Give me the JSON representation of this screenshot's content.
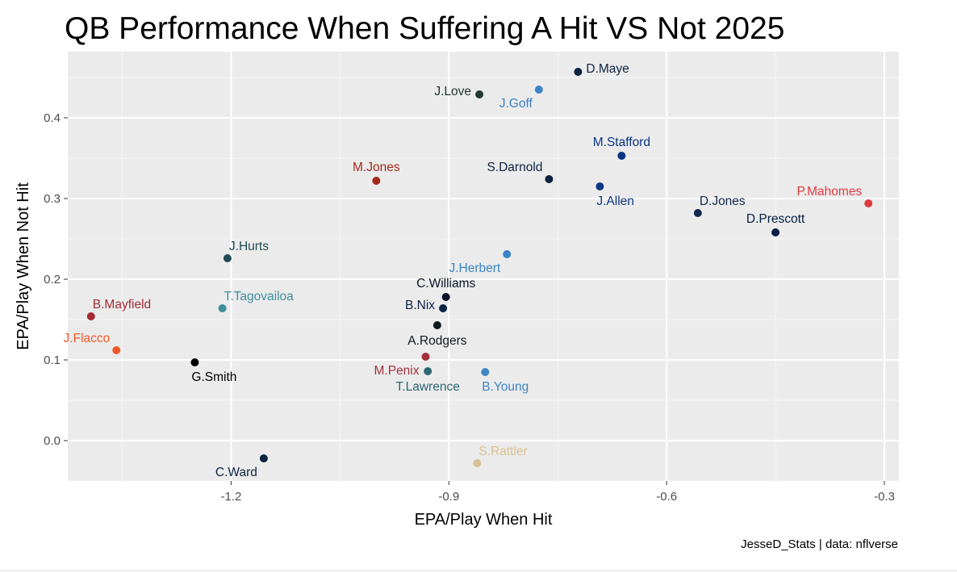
{
  "chart_data": {
    "type": "scatter",
    "title": "QB Performance When Suffering A Hit VS Not 2025",
    "xlabel": "EPA/Play When Hit",
    "ylabel": "EPA/Play When Not Hit",
    "caption": "JesseD_Stats | data: nflverse",
    "xlim": [
      -1.425,
      -0.28
    ],
    "ylim": [
      -0.05,
      0.482
    ],
    "x_ticks": [
      -1.2,
      -0.9,
      -0.6,
      -0.3
    ],
    "x_tick_labels": [
      "-1.2",
      "-0.9",
      "-0.6",
      "-0.3"
    ],
    "y_ticks": [
      0.0,
      0.1,
      0.2,
      0.3,
      0.4
    ],
    "y_tick_labels": [
      "0.0",
      "0.1",
      "0.2",
      "0.3",
      "0.4"
    ],
    "grid": true,
    "legend": "none",
    "points": [
      {
        "label": "D.Maye",
        "x": -0.722,
        "y": 0.457,
        "color": "#0b2341",
        "label_pos": "right"
      },
      {
        "label": "J.Love",
        "x": -0.858,
        "y": 0.429,
        "color": "#203731",
        "label_pos": "left"
      },
      {
        "label": "J.Goff",
        "x": -0.776,
        "y": 0.435,
        "color": "#3a84c8",
        "label_pos": "below-left"
      },
      {
        "label": "M.Stafford",
        "x": -0.662,
        "y": 0.353,
        "color": "#0a3584",
        "label_pos": "above"
      },
      {
        "label": "S.Darnold",
        "x": -0.762,
        "y": 0.324,
        "color": "#0e2341",
        "label_pos": "above-left"
      },
      {
        "label": "J.Allen",
        "x": -0.692,
        "y": 0.315,
        "color": "#0d3785",
        "label_pos": "below-right"
      },
      {
        "label": "M.Jones",
        "x": -1.0,
        "y": 0.322,
        "color": "#a4281c",
        "label_pos": "above"
      },
      {
        "label": "D.Jones",
        "x": -0.557,
        "y": 0.282,
        "color": "#13294b",
        "label_pos": "above-right"
      },
      {
        "label": "D.Prescott",
        "x": -0.45,
        "y": 0.258,
        "color": "#041e42",
        "label_pos": "above"
      },
      {
        "label": "P.Mahomes",
        "x": -0.322,
        "y": 0.294,
        "color": "#e03a3e",
        "label_pos": "above-left"
      },
      {
        "label": "J.Hurts",
        "x": -1.205,
        "y": 0.226,
        "color": "#214b52",
        "label_pos": "above-right"
      },
      {
        "label": "J.Herbert",
        "x": -0.82,
        "y": 0.231,
        "color": "#3a84c8",
        "label_pos": "below-left"
      },
      {
        "label": "C.Williams",
        "x": -0.904,
        "y": 0.178,
        "color": "#0b162a",
        "label_pos": "above"
      },
      {
        "label": "B.Nix",
        "x": -0.908,
        "y": 0.164,
        "color": "#0a2343",
        "label_pos": "left"
      },
      {
        "label": "A.Rodgers",
        "x": -0.916,
        "y": 0.143,
        "color": "#101820",
        "label_pos": "below"
      },
      {
        "label": "M.Penix",
        "x": -0.932,
        "y": 0.104,
        "color": "#a4303c",
        "label_pos": "below-left"
      },
      {
        "label": "T.Lawrence",
        "x": -0.929,
        "y": 0.086,
        "color": "#2b6672",
        "label_pos": "below"
      },
      {
        "label": "B.Young",
        "x": -0.85,
        "y": 0.085,
        "color": "#3f85c6",
        "label_pos": "below-right"
      },
      {
        "label": "T.Tagovailoa",
        "x": -1.212,
        "y": 0.164,
        "color": "#3e8e9c",
        "label_pos": "above-right"
      },
      {
        "label": "B.Mayfield",
        "x": -1.393,
        "y": 0.154,
        "color": "#a32c35",
        "label_pos": "above-right"
      },
      {
        "label": "J.Flacco",
        "x": -1.358,
        "y": 0.112,
        "color": "#ef5a2b",
        "label_pos": "above-left"
      },
      {
        "label": "G.Smith",
        "x": -1.25,
        "y": 0.097,
        "color": "#000000",
        "label_pos": "below-right"
      },
      {
        "label": "C.Ward",
        "x": -1.155,
        "y": -0.022,
        "color": "#0c2340",
        "label_pos": "below-left"
      },
      {
        "label": "S.Rattler",
        "x": -0.861,
        "y": -0.028,
        "color": "#d9bf91",
        "label_pos": "above-right"
      }
    ]
  }
}
